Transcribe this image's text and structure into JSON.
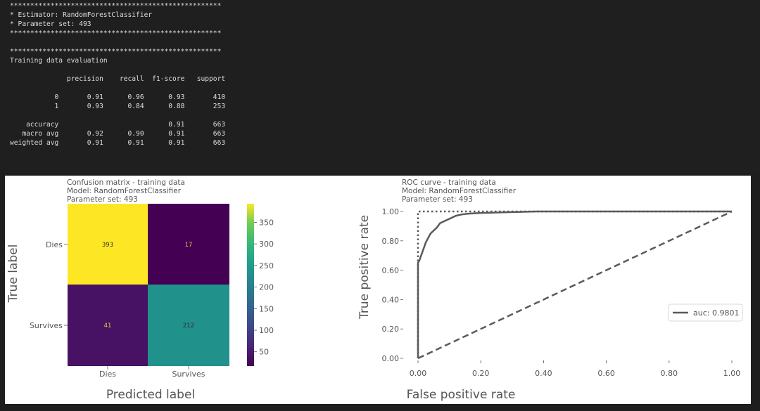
{
  "console": {
    "lines": [
      "****************************************************",
      "* Estimator: RandomForestClassifier",
      "* Parameter set: 493",
      "****************************************************",
      "",
      "****************************************************",
      "Training data evaluation",
      "",
      "              precision    recall  f1-score   support",
      "",
      "           0       0.91      0.96      0.93       410",
      "           1       0.93      0.84      0.88       253",
      "",
      "    accuracy                           0.91       663",
      "   macro avg       0.92      0.90      0.91       663",
      "weighted avg       0.91      0.91      0.91       663"
    ]
  },
  "colors": {
    "yellow": "#fde725",
    "dark_purple": "#440154",
    "dark_purple2": "#471164",
    "teal": "#21918c",
    "roc_line": "#5a5a5a"
  },
  "chart_data": [
    {
      "type": "heatmap",
      "title_lines": [
        "Confusion matrix - training data",
        "Model: RandomForestClassifier",
        "Parameter set: 493"
      ],
      "xlabel": "Predicted label",
      "ylabel": "True label",
      "x_categories": [
        "Dies",
        "Survives"
      ],
      "y_categories": [
        "Dies",
        "Survives"
      ],
      "values": [
        [
          393,
          17
        ],
        [
          41,
          212
        ]
      ],
      "colorbar": {
        "range": [
          17,
          393
        ],
        "ticks": [
          50,
          100,
          150,
          200,
          250,
          300,
          350
        ],
        "colormap": "viridis"
      }
    },
    {
      "type": "line",
      "title_lines": [
        "ROC curve - training data",
        "Model: RandomForestClassifier",
        "Parameter set: 493"
      ],
      "xlabel": "False positive rate",
      "ylabel": "True positive rate",
      "xlim": [
        0,
        1
      ],
      "ylim": [
        0,
        1
      ],
      "xticks": [
        "0.00",
        "0.20",
        "0.40",
        "0.60",
        "0.80",
        "1.00"
      ],
      "yticks": [
        "0.00",
        "0.20",
        "0.40",
        "0.60",
        "0.80",
        "1.00"
      ],
      "legend_placement": "right",
      "series": [
        {
          "name": "auc: 0.9801",
          "style": "solid",
          "x": [
            0,
            0,
            0.005,
            0.01,
            0.015,
            0.02,
            0.025,
            0.03,
            0.04,
            0.05,
            0.06,
            0.07,
            0.08,
            0.1,
            0.12,
            0.14,
            0.16,
            0.2,
            0.25,
            0.3,
            0.38,
            0.45,
            1.0
          ],
          "y": [
            0,
            0.65,
            0.67,
            0.7,
            0.73,
            0.76,
            0.79,
            0.81,
            0.85,
            0.87,
            0.89,
            0.92,
            0.93,
            0.95,
            0.97,
            0.98,
            0.985,
            0.99,
            0.993,
            0.996,
            1.0,
            1.0,
            1.0
          ]
        },
        {
          "style": "dotted",
          "x": [
            0,
            0,
            1
          ],
          "y": [
            0,
            1,
            1
          ]
        },
        {
          "style": "dashed",
          "x": [
            0,
            1
          ],
          "y": [
            0,
            1
          ]
        }
      ]
    }
  ]
}
